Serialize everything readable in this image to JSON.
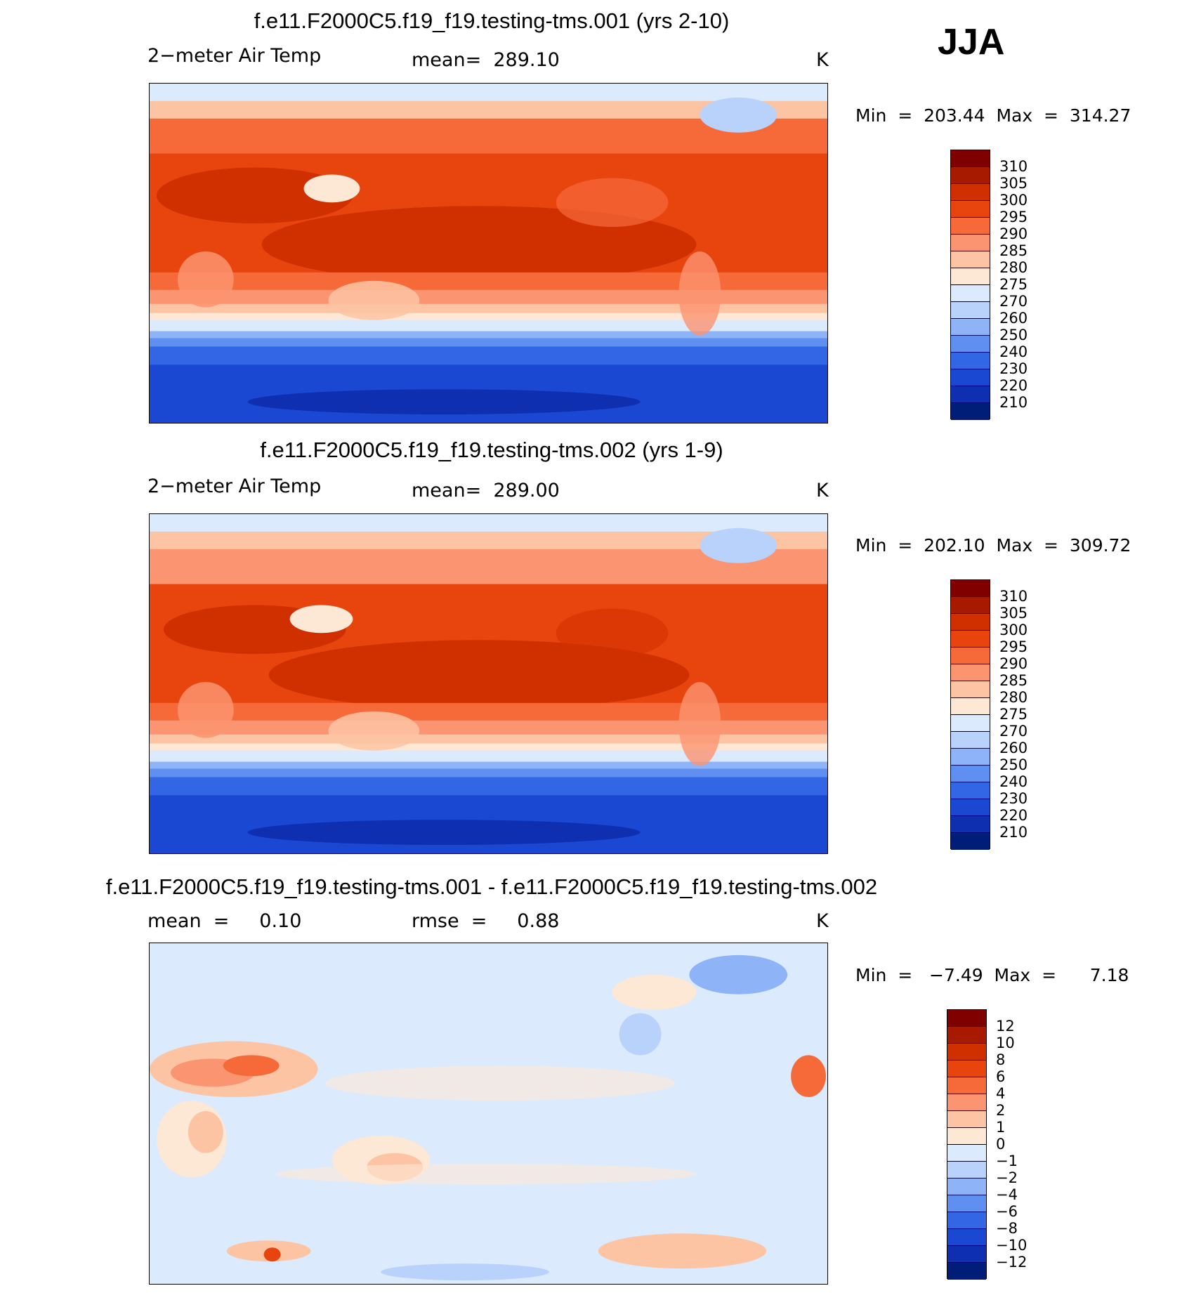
{
  "season": "JJA",
  "colors": {
    "abs_scale": [
      "#800000",
      "#a81a00",
      "#d03000",
      "#e8440e",
      "#f66a3a",
      "#fb9470",
      "#fdc4a4",
      "#fde8d6",
      "#dbeafc",
      "#b8d2fb",
      "#8eb4f7",
      "#5f8ff0",
      "#3266e4",
      "#1b48d2",
      "#0e30b0",
      "#001e78"
    ],
    "diff_scale": [
      "#800000",
      "#a81a00",
      "#d03000",
      "#e8440e",
      "#f66a3a",
      "#fb9470",
      "#fdc4a4",
      "#fde8d6",
      "#dbeafc",
      "#b8d2fb",
      "#8eb4f7",
      "#5f8ff0",
      "#3266e4",
      "#1b48d2",
      "#0e30b0",
      "#001e78"
    ]
  },
  "panels": [
    {
      "title": "f.e11.F2000C5.f19_f19.testing-tms.001 (yrs 2-10)",
      "left_label": "2−meter Air Temp",
      "center_label": "mean=  289.10",
      "right_label": "K",
      "minmax": "Min  =  203.44  Max  =  314.27"
    },
    {
      "title": "f.e11.F2000C5.f19_f19.testing-tms.002 (yrs 1-9)",
      "left_label": "2−meter Air Temp",
      "center_label": "mean=  289.00",
      "right_label": "K",
      "minmax": "Min  =  202.10  Max  =  309.72"
    },
    {
      "title": "f.e11.F2000C5.f19_f19.testing-tms.001 - f.e11.F2000C5.f19_f19.testing-tms.002",
      "left_label": "mean  =     0.10",
      "center_label": "rmse  =     0.88",
      "right_label": "K",
      "minmax": "Min  =   −7.49  Max  =      7.18"
    }
  ],
  "chart_data": [
    {
      "type": "heatmap",
      "title": "f.e11.F2000C5.f19_f19.testing-tms.001 (yrs 2-10)",
      "variable": "2-meter Air Temp",
      "units": "K",
      "mean": 289.1,
      "min": 203.44,
      "max": 314.27,
      "colorbar_levels": [
        "310",
        "305",
        "300",
        "295",
        "290",
        "285",
        "280",
        "275",
        "270",
        "260",
        "250",
        "240",
        "230",
        "220",
        "210"
      ]
    },
    {
      "type": "heatmap",
      "title": "f.e11.F2000C5.f19_f19.testing-tms.002 (yrs 1-9)",
      "variable": "2-meter Air Temp",
      "units": "K",
      "mean": 289.0,
      "min": 202.1,
      "max": 309.72,
      "colorbar_levels": [
        "310",
        "305",
        "300",
        "295",
        "290",
        "285",
        "280",
        "275",
        "270",
        "260",
        "250",
        "240",
        "230",
        "220",
        "210"
      ]
    },
    {
      "type": "heatmap",
      "title": "f.e11.F2000C5.f19_f19.testing-tms.001 - f.e11.F2000C5.f19_f19.testing-tms.002",
      "units": "K",
      "mean": 0.1,
      "rmse": 0.88,
      "min": -7.49,
      "max": 7.18,
      "colorbar_levels": [
        "12",
        "10",
        "8",
        "6",
        "4",
        "2",
        "1",
        "0",
        "−1",
        "−2",
        "−4",
        "−6",
        "−8",
        "−10",
        "−12"
      ]
    }
  ]
}
